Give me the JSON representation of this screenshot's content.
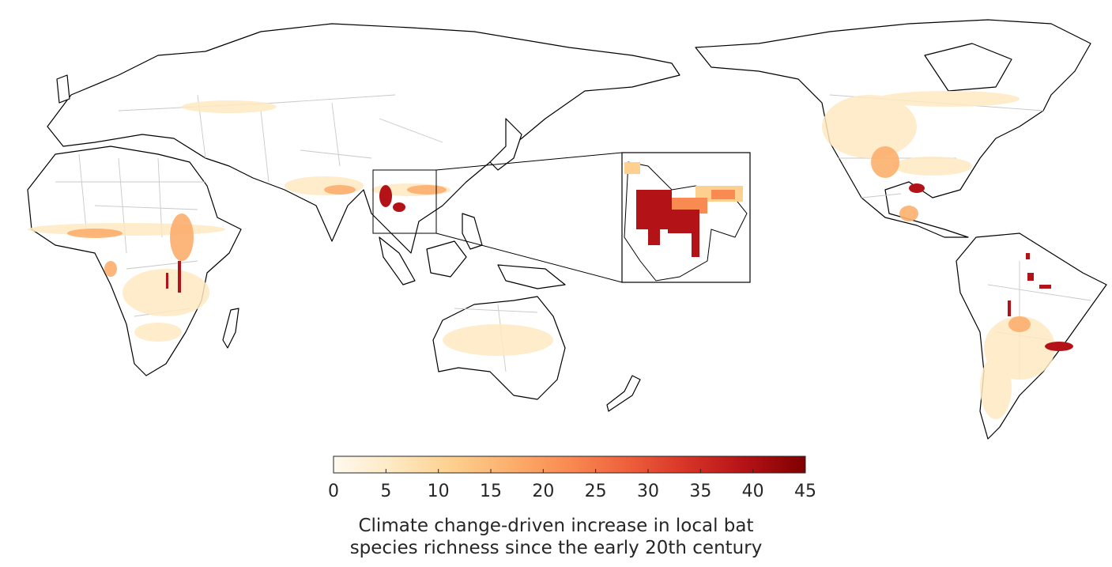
{
  "colorbar": {
    "min": 0,
    "max": 45,
    "ticks": [
      "0",
      "5",
      "10",
      "15",
      "20",
      "25",
      "30",
      "35",
      "40",
      "45"
    ],
    "colors": [
      "#fff9ee",
      "#fee9c2",
      "#fdd08f",
      "#fcaf6d",
      "#f98a51",
      "#ee5f3c",
      "#d63327",
      "#b31216",
      "#7f0000"
    ]
  },
  "caption": {
    "line1": "Climate change-driven increase in local bat",
    "line2": "species richness since the early 20th century"
  },
  "map": {
    "projection": "pacific-centered",
    "inset_region": "Indochina",
    "land_color": "#ffffff",
    "coastline_color": "#000000",
    "border_color": "#c8c8c8"
  }
}
